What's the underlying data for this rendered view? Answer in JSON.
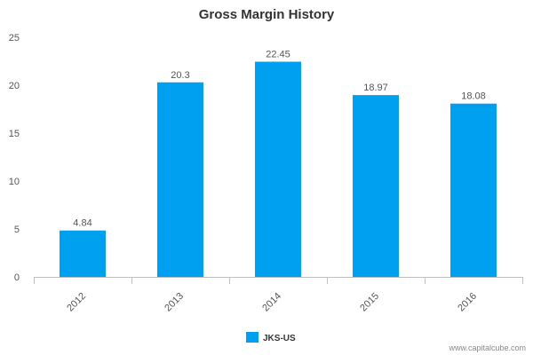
{
  "chart_data": {
    "type": "bar",
    "title": "Gross Margin History",
    "xlabel": "",
    "ylabel": "",
    "categories": [
      "2012",
      "2013",
      "2014",
      "2015",
      "2016"
    ],
    "series": [
      {
        "name": "JKS-US",
        "values": [
          4.84,
          20.3,
          22.45,
          18.97,
          18.08
        ]
      }
    ],
    "data_labels": [
      "4.84",
      "20.3",
      "22.45",
      "18.97",
      "18.08"
    ],
    "ylim": [
      0,
      25
    ],
    "yticks": [
      0,
      5,
      10,
      15,
      20,
      25
    ],
    "grid": false,
    "legend": "bottom-center",
    "colors": {
      "bar": "#00a0f0",
      "axis": "#c0c0c0",
      "text": "#555555"
    }
  },
  "footer": {
    "credit": "www.capitalcube.com"
  }
}
